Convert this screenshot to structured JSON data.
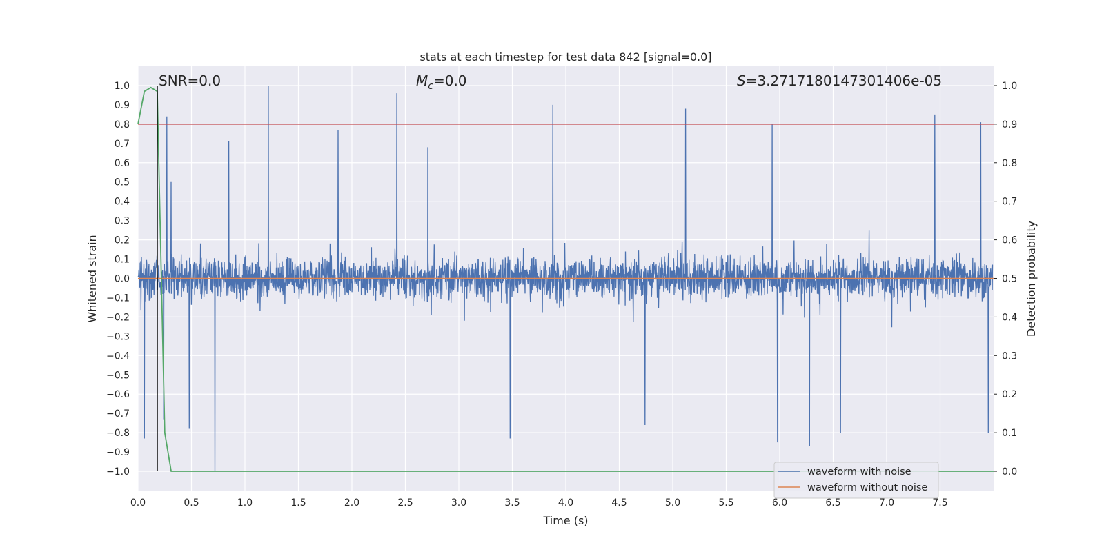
{
  "chart_data": {
    "type": "line",
    "title": "stats at each timestep for test data 842 [signal=0.0]",
    "xlabel": "Time (s)",
    "ylabel": "Whitened strain",
    "y2label": "Detection probability",
    "xlim": [
      0.0,
      8.0
    ],
    "ylim": [
      -1.1,
      1.1
    ],
    "y2lim": [
      -0.05,
      1.05
    ],
    "x_ticks": [
      0.0,
      0.5,
      1.0,
      1.5,
      2.0,
      2.5,
      3.0,
      3.5,
      4.0,
      4.5,
      5.0,
      5.5,
      6.0,
      6.5,
      7.0,
      7.5
    ],
    "x_tick_labels": [
      "0.0",
      "0.5",
      "1.0",
      "1.5",
      "2.0",
      "2.5",
      "3.0",
      "3.5",
      "4.0",
      "4.5",
      "5.0",
      "5.5",
      "6.0",
      "6.5",
      "7.0",
      "7.5"
    ],
    "y_ticks": [
      1.0,
      0.9,
      0.8,
      0.7,
      0.6,
      0.5,
      0.4,
      0.3,
      0.2,
      0.1,
      0.0,
      -0.1,
      -0.2,
      -0.3,
      -0.4,
      -0.5,
      -0.6,
      -0.7,
      -0.8,
      -0.9,
      -1.0
    ],
    "y_tick_labels": [
      "1.0",
      "0.9",
      "0.8",
      "0.7",
      "0.6",
      "0.5",
      "0.4",
      "0.3",
      "0.2",
      "0.1",
      "0.0",
      "−0.1",
      "−0.2",
      "−0.3",
      "−0.4",
      "−0.5",
      "−0.6",
      "−0.7",
      "−0.8",
      "−0.9",
      "−1.0"
    ],
    "y2_ticks": [
      1.0,
      0.9,
      0.8,
      0.7,
      0.6,
      0.5,
      0.4,
      0.3,
      0.2,
      0.1,
      0.0
    ],
    "y2_tick_labels": [
      "1.0",
      "0.9",
      "0.8",
      "0.7",
      "0.6",
      "0.5",
      "0.4",
      "0.3",
      "0.2",
      "0.1",
      "0.0"
    ],
    "grid": true,
    "legend_position": "lower-right",
    "annotations": {
      "snr": "SNR=0.0",
      "mc_symbol": "M",
      "mc_sub": "c",
      "mc_value": "=0.0",
      "s_symbol": "S",
      "s_value": "=3.2717180147301406e-05"
    },
    "series": [
      {
        "name": "waveform with noise",
        "color": "#4c72b0",
        "axis": "left",
        "description": "dense whitened noise",
        "noise_envelope": [
          -1.0,
          1.0
        ],
        "peaks": [
          {
            "x": 0.27,
            "y": 0.84
          },
          {
            "x": 0.31,
            "y": 0.5
          },
          {
            "x": 0.85,
            "y": 0.71
          },
          {
            "x": 1.22,
            "y": 1.0
          },
          {
            "x": 1.87,
            "y": 0.77
          },
          {
            "x": 2.42,
            "y": 0.96
          },
          {
            "x": 2.71,
            "y": 0.68
          },
          {
            "x": 3.88,
            "y": 0.9
          },
          {
            "x": 5.12,
            "y": 0.88
          },
          {
            "x": 5.93,
            "y": 0.8
          },
          {
            "x": 7.45,
            "y": 0.85
          },
          {
            "x": 7.88,
            "y": 0.81
          }
        ],
        "troughs": [
          {
            "x": 0.06,
            "y": -0.83
          },
          {
            "x": 0.24,
            "y": -0.73
          },
          {
            "x": 0.48,
            "y": -0.78
          },
          {
            "x": 0.72,
            "y": -1.0
          },
          {
            "x": 3.48,
            "y": -0.83
          },
          {
            "x": 4.74,
            "y": -0.76
          },
          {
            "x": 5.98,
            "y": -0.85
          },
          {
            "x": 6.28,
            "y": -0.87
          },
          {
            "x": 6.57,
            "y": -0.8
          },
          {
            "x": 7.95,
            "y": -0.8
          }
        ]
      },
      {
        "name": "waveform without noise",
        "color": "#dd8452",
        "axis": "left",
        "x": [
          0.0,
          8.0
        ],
        "y": [
          0.0,
          0.0
        ]
      },
      {
        "name": "detection probability",
        "color": "#55a868",
        "axis": "right",
        "x": [
          0.0,
          0.06,
          0.12,
          0.18,
          0.25,
          0.31,
          8.0
        ],
        "y": [
          0.9,
          0.985,
          0.995,
          0.985,
          0.1,
          0.0,
          0.0
        ]
      }
    ],
    "threshold": {
      "value": 0.9,
      "axis": "right",
      "color": "#c44e52"
    },
    "vline": {
      "x": 0.18,
      "color": "#000000"
    },
    "legend": [
      "waveform with noise",
      "waveform without noise"
    ]
  }
}
